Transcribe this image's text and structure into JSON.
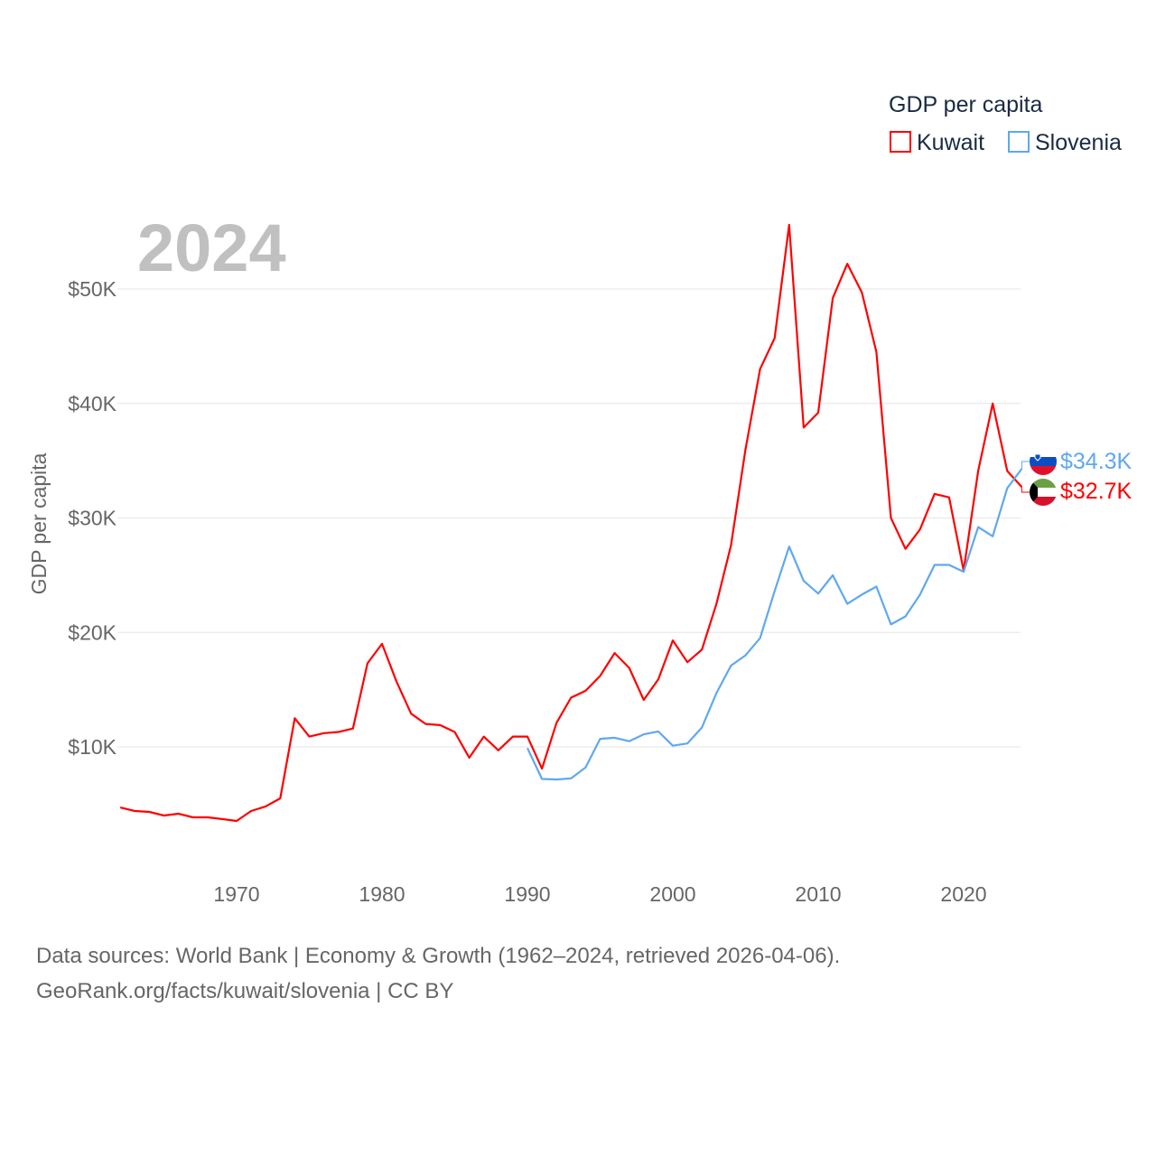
{
  "chart_data": {
    "type": "line",
    "title": "GDP per capita",
    "year_label": "2024",
    "ylabel": "GDP per capita",
    "xlabel": "",
    "ylim": [
      0,
      56000
    ],
    "xlim": [
      1962,
      2024
    ],
    "grid": true,
    "legend_placement": "top-right",
    "legend_title": "GDP per capita",
    "x_ticks": [
      1970,
      1980,
      1990,
      2000,
      2010,
      2020
    ],
    "x_tick_labels": [
      "1970",
      "1980",
      "1990",
      "2000",
      "2010",
      "2020"
    ],
    "y_ticks": [
      10000,
      20000,
      30000,
      40000,
      50000
    ],
    "y_tick_labels": [
      "$10K",
      "$20K",
      "$30K",
      "$40K",
      "$50K"
    ],
    "series": [
      {
        "name": "Kuwait",
        "color": "#ff0000",
        "end_label": "$32.7K",
        "start_year": 1962,
        "values": [
          4710,
          4400,
          4320,
          4000,
          4160,
          3850,
          3850,
          3700,
          3530,
          4400,
          4800,
          5500,
          12500,
          10900,
          11200,
          11300,
          11600,
          17300,
          19000,
          15700,
          12900,
          12000,
          11900,
          11300,
          9050,
          10900,
          9700,
          10900,
          10900,
          8100,
          12100,
          14300,
          14900,
          16200,
          18200,
          16900,
          14100,
          15900,
          19300,
          17400,
          18500,
          22500,
          27600,
          36000,
          43000,
          45700,
          55600,
          37900,
          39200,
          49200,
          52200,
          49700,
          44500,
          30000,
          27300,
          29000,
          32100,
          31800,
          25400,
          34100,
          40000,
          34100,
          32700
        ]
      },
      {
        "name": "Slovenia",
        "color": "#5fa8f0",
        "end_label": "$34.3K",
        "start_year": 1990,
        "values": [
          9900,
          7200,
          7150,
          7250,
          8200,
          10700,
          10800,
          10500,
          11100,
          11350,
          10100,
          10300,
          11700,
          14700,
          17100,
          18000,
          19500,
          23600,
          27500,
          24500,
          23400,
          25000,
          22500,
          23300,
          24000,
          20700,
          21400,
          23300,
          25900,
          25900,
          25300,
          29200,
          28400,
          32600,
          34300
        ]
      }
    ]
  },
  "footer": {
    "sources": "Data sources: World Bank | Economy & Growth (1962–2024, retrieved 2026-04-06).",
    "credit": "GeoRank.org/facts/kuwait/slovenia | CC BY"
  }
}
